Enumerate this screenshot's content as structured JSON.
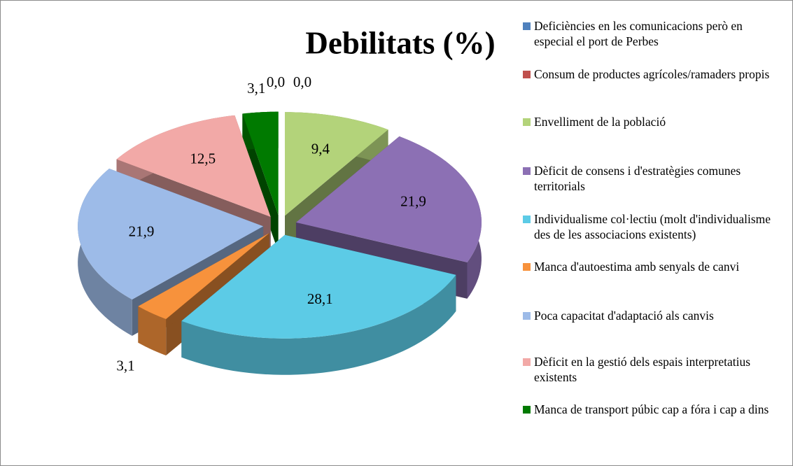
{
  "chart_data": {
    "type": "pie3d",
    "title": "Debilitats (%)",
    "categories": [
      "Deficiències en les comunicacions però en especial el port de Perbes",
      "Consum de productes agrícoles/ramaders propis",
      "Envelliment de la població",
      "Dèficit de consens i d'estratègies comunes territorials",
      "Individualisme col·lectiu (molt d'individualisme des de les associacions existents)",
      "Manca d'autoestima amb senyals de canvi",
      "Poca capacitat d'adaptació als canvis",
      "Dèficit en la gestió dels espais interpretatius existents",
      "Manca de transport púbic cap a fóra i cap a dins"
    ],
    "values": [
      0.0,
      0.0,
      9.4,
      21.9,
      28.1,
      3.1,
      21.9,
      12.5,
      3.1
    ],
    "value_labels": [
      "0,0",
      "0,0",
      "9,4",
      "21,9",
      "28,1",
      "3,1",
      "21,9",
      "12,5",
      "3,1"
    ],
    "colors": [
      "#4f81bd",
      "#c0504d",
      "#b3d37a",
      "#8c70b4",
      "#5ccbe6",
      "#f7923c",
      "#9dbbe8",
      "#f2a9a7",
      "#007a00"
    ],
    "legend": "right"
  }
}
